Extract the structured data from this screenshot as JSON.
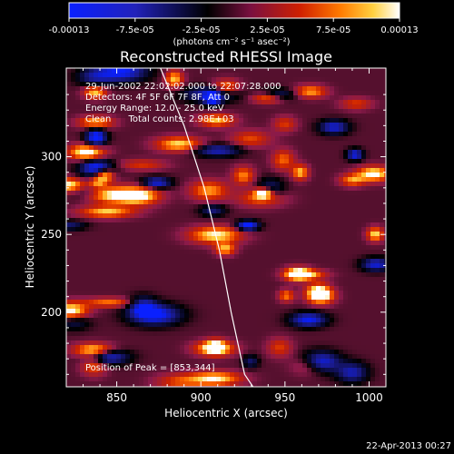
{
  "chart_data": {
    "type": "heatmap",
    "title": "Reconstructed RHESSI Image",
    "xlabel": "Heliocentric X (arcsec)",
    "ylabel": "Heliocentric Y (arcsec)",
    "xlim": [
      820,
      1010
    ],
    "ylim": [
      152,
      357
    ],
    "xticks": [
      850,
      900,
      950,
      1000
    ],
    "yticks": [
      200,
      250,
      300
    ],
    "colorbar": {
      "min": -0.00013,
      "max": 0.00013,
      "ticks": [
        "-0.00013",
        "-7.5e-05",
        "-2.5e-05",
        "2.5e-05",
        "7.5e-05",
        "0.00013"
      ],
      "unit_label": "(photons cm⁻² s⁻¹ asec⁻²)",
      "colors": [
        "#0a20ff",
        "#1a1a8a",
        "#000000",
        "#8a1a4a",
        "#cc2200",
        "#ff6a00",
        "#ffd040",
        "#ffffff"
      ]
    },
    "annotations": [
      "29-Jun-2002 22:02:02.000 to 22:07:28.000",
      "Detectors: 4F 5F 6F 7F 8F, Att 0",
      "Energy Range: 12.0 - 25.0 keV",
      "Clean      Total counts: 2.98E+03"
    ],
    "peak_label": "Position of Peak = [853,344]",
    "limb_curve": [
      [
        876,
        357
      ],
      [
        890,
        320
      ],
      [
        902,
        280
      ],
      [
        911,
        240
      ],
      [
        918,
        200
      ],
      [
        926,
        160
      ],
      [
        931,
        152
      ]
    ],
    "grid": false
  },
  "footer": {
    "timestamp": "22-Apr-2013 00:27"
  }
}
